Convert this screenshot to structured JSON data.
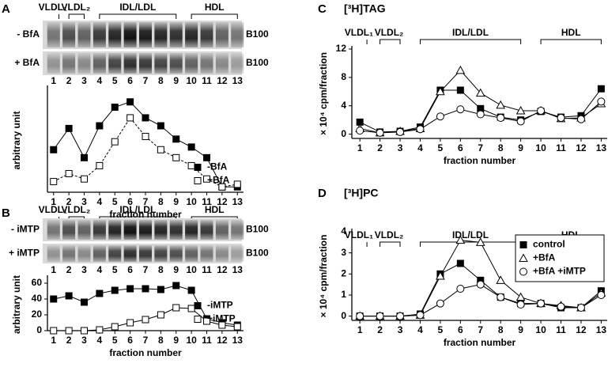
{
  "chart_data": [
    {
      "panel": "A",
      "type": "line",
      "fraction_groups": [
        "VLDL₁",
        "VLDL₂",
        "IDL/LDL",
        "HDL"
      ],
      "gel": {
        "rows": [
          "- BfA",
          "+ BfA"
        ],
        "band_label": "B100"
      },
      "x": [
        1,
        2,
        3,
        4,
        5,
        6,
        7,
        8,
        9,
        10,
        11,
        12,
        13
      ],
      "xticks": [
        1,
        2,
        3,
        4,
        5,
        6,
        7,
        8,
        9,
        10,
        11,
        12,
        13
      ],
      "xlim": [
        0.6,
        13.4
      ],
      "ylim": [
        -3,
        36
      ],
      "xlabel": "fraction number",
      "ylabel": "arbitrary unit",
      "legend": "lower right",
      "series": [
        {
          "name": "-BfA",
          "color": "#000000",
          "marker": "square",
          "marker_fill": "#000000",
          "line_style": "solid",
          "values": [
            13,
            21,
            10,
            22,
            29,
            31,
            25,
            22,
            17,
            14,
            10,
            -1,
            -1
          ]
        },
        {
          "name": "+BfA",
          "color": "#000000",
          "marker": "square",
          "marker_fill": "#ffffff",
          "line_style": "dashed",
          "values": [
            1,
            4,
            2,
            7,
            16,
            25,
            18,
            13,
            10,
            7,
            2,
            -1,
            0
          ]
        }
      ]
    },
    {
      "panel": "B",
      "type": "line",
      "fraction_groups": [
        "VLDL₁",
        "VLDL₂",
        "IDL/LDL",
        "HDL"
      ],
      "gel": {
        "rows": [
          "- iMTP",
          "+ iMTP"
        ],
        "band_label": "B100"
      },
      "x": [
        1,
        2,
        3,
        4,
        5,
        6,
        7,
        8,
        9,
        10,
        11,
        12,
        13
      ],
      "xticks": [
        1,
        2,
        3,
        4,
        5,
        6,
        7,
        8,
        9,
        10,
        11,
        12,
        13
      ],
      "xlim": [
        0.6,
        13.4
      ],
      "ylim": [
        0,
        66
      ],
      "yticks": [
        0,
        20,
        40,
        60
      ],
      "xlabel": "fraction number",
      "ylabel": "arbitrary unit",
      "legend": "lower right",
      "series": [
        {
          "name": "-iMTP",
          "color": "#000000",
          "marker": "square",
          "marker_fill": "#000000",
          "line_style": "solid",
          "values": [
            40,
            44,
            36,
            47,
            51,
            53,
            53,
            52,
            57,
            51,
            15,
            10,
            7
          ]
        },
        {
          "name": "+iMTP",
          "color": "#000000",
          "marker": "square",
          "marker_fill": "#ffffff",
          "line_style": "solid",
          "values": [
            0,
            0,
            0,
            1,
            5,
            10,
            14,
            20,
            29,
            28,
            12,
            7,
            5
          ]
        }
      ]
    },
    {
      "panel": "C",
      "type": "line",
      "title": "[³H]TAG",
      "fraction_groups": [
        "VLDL₁",
        "VLDL₂",
        "IDL/LDL",
        "HDL"
      ],
      "x": [
        1,
        2,
        3,
        4,
        5,
        6,
        7,
        8,
        9,
        10,
        11,
        12,
        13
      ],
      "xticks": [
        1,
        2,
        3,
        4,
        5,
        6,
        7,
        8,
        9,
        10,
        11,
        12,
        13
      ],
      "xlim": [
        0.6,
        13.3
      ],
      "ylim": [
        -0.6,
        12
      ],
      "yticks": [
        0,
        4,
        8,
        12
      ],
      "xlabel": "fraction number",
      "ylabel": "× 10⁴ cpm/fraction",
      "series": [
        {
          "color": "#000000",
          "marker": "square",
          "marker_fill": "#000000",
          "line_style": "solid",
          "values": [
            1.7,
            0.3,
            0.4,
            1.0,
            6.2,
            6.2,
            3.6,
            2.4,
            2.0,
            3.2,
            2.4,
            2.6,
            6.4
          ]
        },
        {
          "color": "#000000",
          "marker": "triangle",
          "marker_fill": "#ffffff",
          "line_style": "solid",
          "values": [
            0.8,
            0.2,
            0.4,
            0.8,
            6.0,
            9.0,
            5.8,
            4.1,
            3.3,
            3.3,
            2.2,
            2.3,
            4.3
          ]
        },
        {
          "color": "#000000",
          "marker": "circle",
          "marker_fill": "#ffffff",
          "line_style": "solid",
          "values": [
            0.5,
            0.2,
            0.3,
            0.7,
            2.5,
            3.5,
            2.8,
            2.3,
            1.8,
            3.3,
            2.3,
            2.1,
            4.6
          ]
        }
      ]
    },
    {
      "panel": "D",
      "type": "line",
      "title": "[³H]PC",
      "fraction_groups": [
        "VLDL₁",
        "VLDL₂",
        "IDL/LDL",
        "HDL"
      ],
      "x": [
        1,
        2,
        3,
        4,
        5,
        6,
        7,
        8,
        9,
        10,
        11,
        12,
        13
      ],
      "xticks": [
        1,
        2,
        3,
        4,
        5,
        6,
        7,
        8,
        9,
        10,
        11,
        12,
        13
      ],
      "xlim": [
        0.6,
        13.3
      ],
      "ylim": [
        -0.2,
        4
      ],
      "yticks": [
        0,
        1,
        2,
        3,
        4
      ],
      "xlabel": "fraction number",
      "ylabel": "× 10⁴ cpm/fraction",
      "legend": "upper right",
      "series": [
        {
          "name": "control",
          "color": "#000000",
          "marker": "square",
          "marker_fill": "#000000",
          "line_style": "solid",
          "values": [
            0,
            0,
            0,
            0.1,
            2.0,
            2.5,
            1.7,
            0.9,
            0.6,
            0.6,
            0.4,
            0.4,
            1.2
          ]
        },
        {
          "name": "+BfA",
          "color": "#000000",
          "marker": "triangle",
          "marker_fill": "#ffffff",
          "line_style": "solid",
          "values": [
            0,
            0,
            0,
            0.05,
            1.9,
            3.6,
            3.5,
            1.7,
            0.9,
            0.6,
            0.5,
            0.4,
            1.1
          ]
        },
        {
          "name": "+BfA +iMTP",
          "color": "#000000",
          "marker": "circle",
          "marker_fill": "#ffffff",
          "line_style": "solid",
          "values": [
            0,
            0,
            0,
            0.05,
            0.6,
            1.3,
            1.5,
            0.9,
            0.55,
            0.6,
            0.45,
            0.4,
            1.0
          ]
        }
      ]
    }
  ]
}
